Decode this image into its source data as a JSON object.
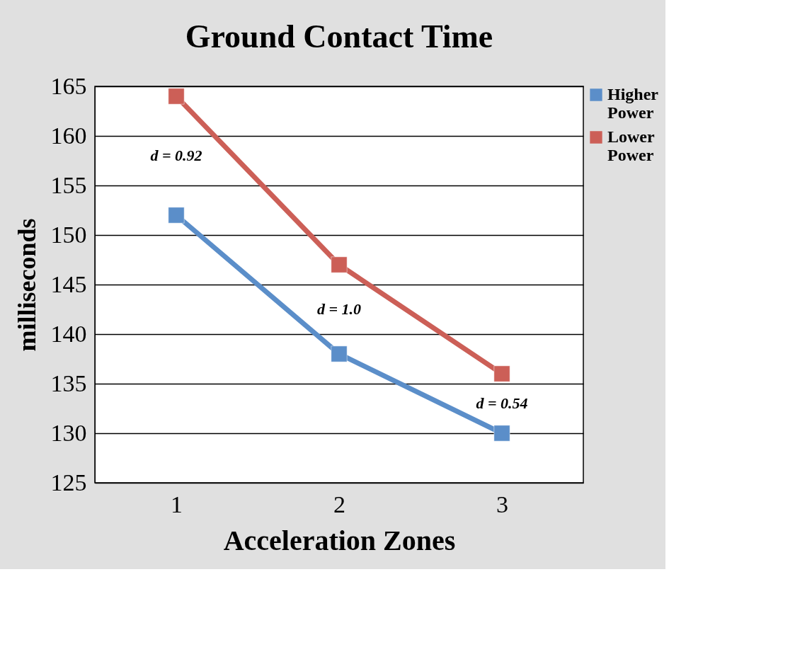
{
  "chart_data": {
    "type": "line",
    "title": "Ground Contact Time",
    "xlabel": "Acceleration Zones",
    "ylabel": "milliseconds",
    "categories": [
      "1",
      "2",
      "3"
    ],
    "series": [
      {
        "name": "Higher Power",
        "color": "#5b8ec9",
        "values": [
          152,
          138,
          130
        ]
      },
      {
        "name": "Lower Power",
        "color": "#cc5f57",
        "values": [
          164,
          147,
          136
        ]
      }
    ],
    "ylim": [
      125,
      165
    ],
    "yticks": [
      125,
      130,
      135,
      140,
      145,
      150,
      155,
      160,
      165
    ],
    "grid": "y",
    "legend": "right",
    "marker": "square",
    "line_style": "solid",
    "annotations": [
      "d = 0.92",
      "d = 1.0",
      "d = 0.54"
    ]
  }
}
